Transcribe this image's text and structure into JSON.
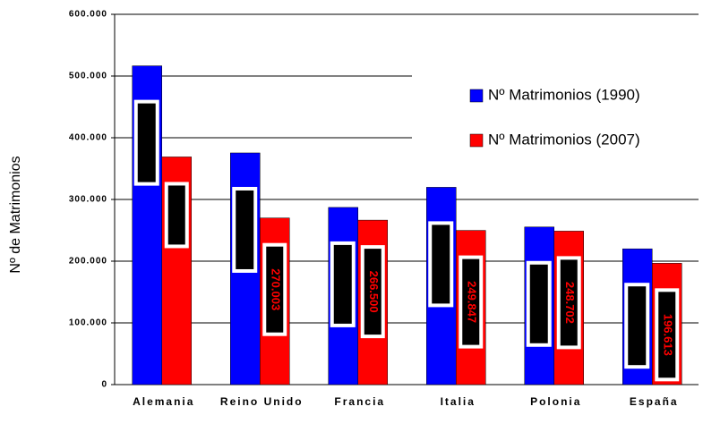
{
  "chart_data": {
    "type": "bar",
    "y_label": "Nº de Matrimonios",
    "categories": [
      "Alemania",
      "Reino Unido",
      "Francia",
      "Italia",
      "Polonia",
      "España"
    ],
    "series": [
      {
        "name": "Nº Matrimonios (1990)",
        "color": "#0000ff",
        "values": [
          516500,
          375400,
          287100,
          319700,
          255400,
          220000
        ]
      },
      {
        "name": "Nº Matrimonios (2007)",
        "color": "#ff0000",
        "values": [
          368922,
          270003,
          266500,
          249847,
          248702,
          196613
        ],
        "value_labels": [
          null,
          "270.003",
          "266.500",
          "249.847",
          "248.702",
          "196.613"
        ]
      }
    ],
    "ylim": [
      0,
      600000
    ],
    "yticks": [
      {
        "value": 0,
        "label": "0"
      },
      {
        "value": 100000,
        "label": "100.000"
      },
      {
        "value": 200000,
        "label": "200.000"
      },
      {
        "value": 300000,
        "label": "300.000"
      },
      {
        "value": 400000,
        "label": "400.000"
      },
      {
        "value": 500000,
        "label": "500.000"
      },
      {
        "value": 600000,
        "label": "600.000"
      }
    ],
    "grid": true
  }
}
